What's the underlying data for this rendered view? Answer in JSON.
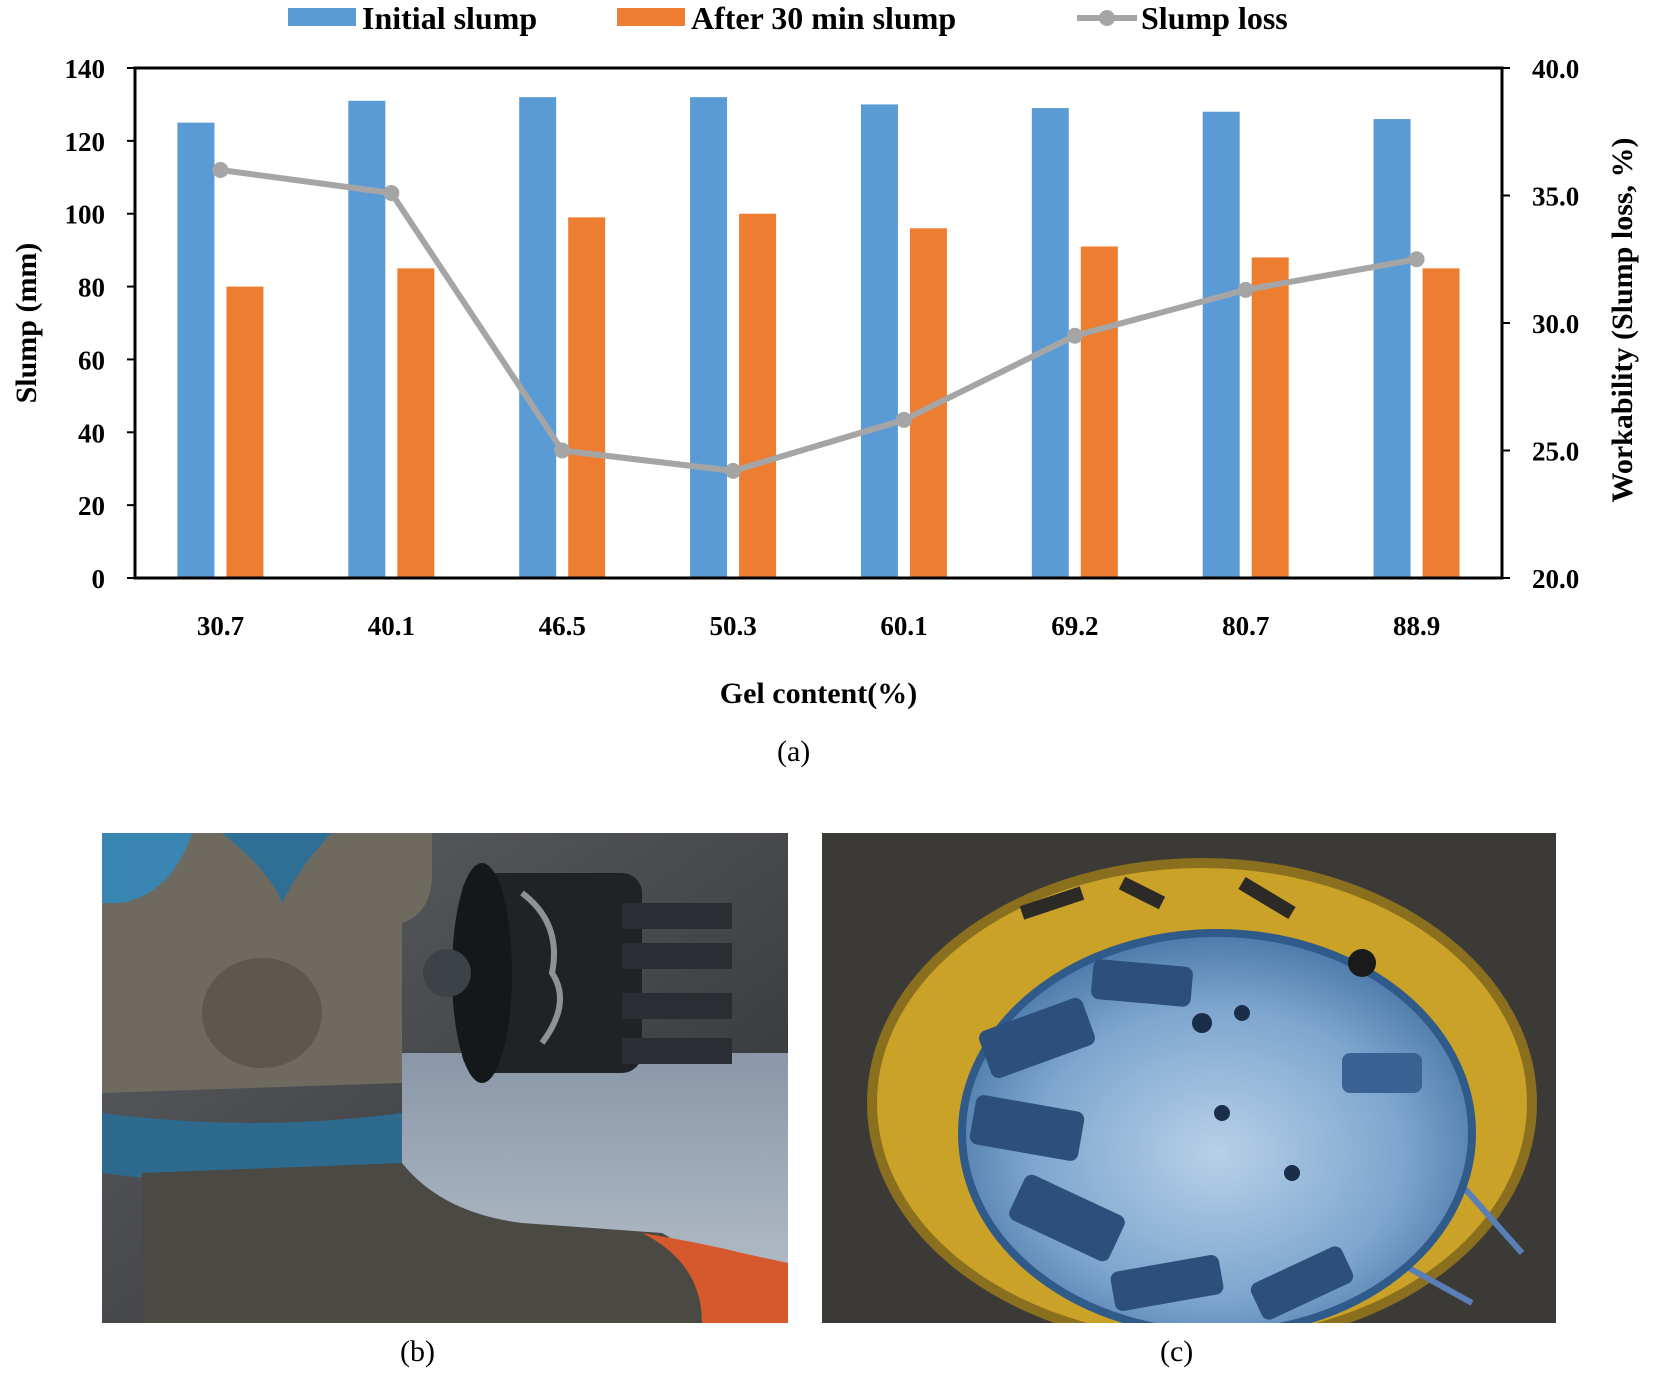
{
  "chart_data": {
    "type": "bar",
    "categories": [
      "30.7",
      "40.1",
      "46.5",
      "50.3",
      "60.1",
      "69.2",
      "80.7",
      "88.9"
    ],
    "xlabel": "Gel content(%)",
    "ylabel": "Slump  (mm)",
    "y2label": "Workability (Slump loss, %)",
    "ylim": [
      0,
      140
    ],
    "yticks": [
      "0",
      "20",
      "40",
      "60",
      "80",
      "100",
      "120",
      "140"
    ],
    "y2lim": [
      20,
      40
    ],
    "y2ticks": [
      "20.0",
      "25.0",
      "30.0",
      "35.0",
      "40.0"
    ],
    "legend_position": "top",
    "series": [
      {
        "name": "Initial slump",
        "kind": "bar",
        "color": "#5B9BD5",
        "values": [
          125,
          131,
          132,
          132,
          130,
          129,
          128,
          126
        ]
      },
      {
        "name": "After 30 min slump",
        "kind": "bar",
        "color": "#ED7D31",
        "values": [
          80,
          85,
          99,
          100,
          96,
          91,
          88,
          85
        ]
      },
      {
        "name": "Slump loss",
        "kind": "line",
        "axis": "right",
        "color": "#A5A5A5",
        "values": [
          36.0,
          35.1,
          25.0,
          24.2,
          26.2,
          29.5,
          31.3,
          32.5
        ]
      }
    ]
  },
  "captions": {
    "a": "(a)",
    "b": "(b)",
    "c": "(c)"
  }
}
